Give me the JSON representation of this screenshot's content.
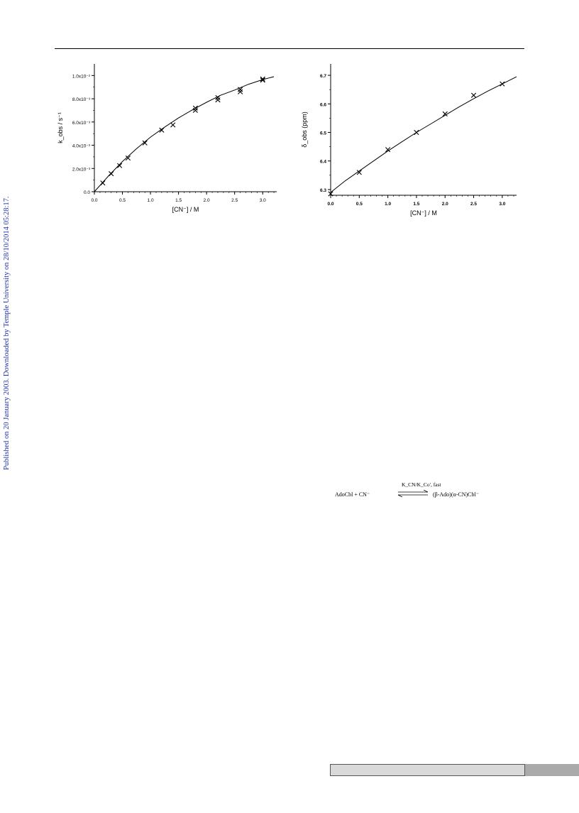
{
  "side_note": "Published on 20 January 2003. Downloaded by Temple University on 28/10/2014 05:28:17.",
  "chart_data": [
    {
      "type": "scatter",
      "xlabel": "[CN⁻] / M",
      "ylabel": "k_obs / s⁻¹",
      "xlim": [
        0,
        3.25
      ],
      "ylim": [
        0,
        0.011
      ],
      "x_ticks": [
        "0.0",
        "0.5",
        "1.0",
        "1.5",
        "2.0",
        "2.5",
        "3.0"
      ],
      "y_ticks": [
        "0.0",
        "2.0x10⁻³",
        "4.0x10⁻³",
        "6.0x10⁻³",
        "8.0x10⁻³",
        "1.0x10⁻²"
      ],
      "points": [
        {
          "x": 0.15,
          "y": 0.00075
        },
        {
          "x": 0.3,
          "y": 0.00155
        },
        {
          "x": 0.45,
          "y": 0.00225
        },
        {
          "x": 0.6,
          "y": 0.0029
        },
        {
          "x": 0.9,
          "y": 0.0042
        },
        {
          "x": 1.2,
          "y": 0.0053
        },
        {
          "x": 1.4,
          "y": 0.00575
        },
        {
          "x": 1.8,
          "y": 0.007
        },
        {
          "x": 1.8,
          "y": 0.0072
        },
        {
          "x": 2.2,
          "y": 0.0079
        },
        {
          "x": 2.2,
          "y": 0.0081
        },
        {
          "x": 2.6,
          "y": 0.0086
        },
        {
          "x": 2.6,
          "y": 0.0088
        },
        {
          "x": 3.0,
          "y": 0.0096
        },
        {
          "x": 3.0,
          "y": 0.0097
        }
      ],
      "fit": {
        "x": [
          0,
          0.25,
          0.5,
          0.75,
          1.0,
          1.25,
          1.5,
          1.75,
          2.0,
          2.25,
          2.5,
          2.75,
          3.0,
          3.2
        ],
        "y": [
          0,
          0.00135,
          0.0026,
          0.0037,
          0.0047,
          0.00555,
          0.00635,
          0.00705,
          0.0077,
          0.0083,
          0.00875,
          0.00925,
          0.00965,
          0.0099
        ]
      },
      "grid": false
    },
    {
      "type": "scatter",
      "xlabel": "[CN⁻] / M",
      "ylabel": "δ_obs (ppm)",
      "xlim": [
        0,
        3.25
      ],
      "ylim": [
        6.28,
        6.74
      ],
      "x_ticks": [
        "0.0",
        "0.5",
        "1.0",
        "1.5",
        "2.0",
        "2.5",
        "3.0"
      ],
      "y_ticks": [
        "6.3",
        "6.4",
        "6.5",
        "6.6",
        "6.7"
      ],
      "points": [
        {
          "x": 0.0,
          "y": 6.285
        },
        {
          "x": 0.5,
          "y": 6.36
        },
        {
          "x": 1.0,
          "y": 6.44
        },
        {
          "x": 1.5,
          "y": 6.5
        },
        {
          "x": 2.0,
          "y": 6.565
        },
        {
          "x": 2.5,
          "y": 6.63
        },
        {
          "x": 3.0,
          "y": 6.67
        }
      ],
      "fit": {
        "x": [
          0,
          0.25,
          0.5,
          0.75,
          1.0,
          1.25,
          1.5,
          1.75,
          2.0,
          2.25,
          2.5,
          2.75,
          3.0,
          3.25
        ],
        "y": [
          6.29,
          6.33,
          6.365,
          6.4,
          6.435,
          6.468,
          6.5,
          6.53,
          6.56,
          6.59,
          6.618,
          6.645,
          6.67,
          6.695
        ]
      },
      "grid": false
    }
  ],
  "scheme": {
    "lhs": "AdoCbl  +  CN⁻",
    "above": "K_CN/K_Co', fast",
    "rhs": "(β-Ado)(α-CN)Cbl⁻"
  }
}
